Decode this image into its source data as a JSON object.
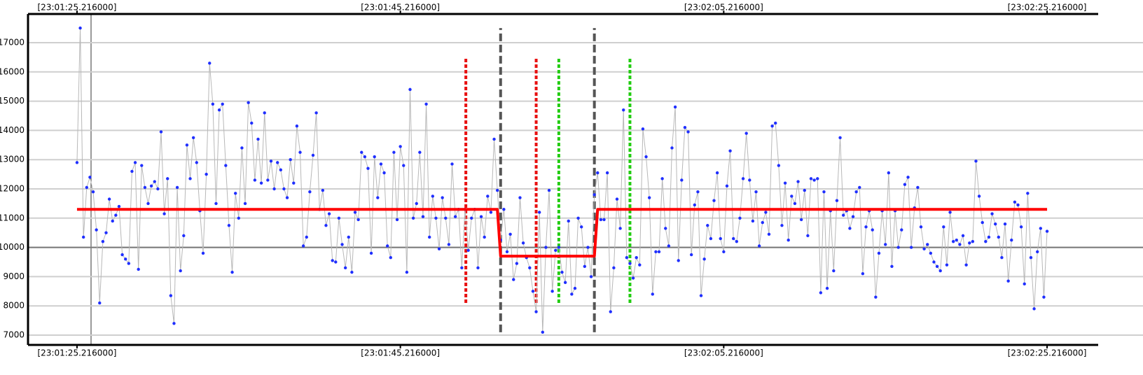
{
  "chart_data": {
    "type": "line",
    "xlim": [
      -3.03,
      63.03
    ],
    "xticks": [
      {
        "value": 0,
        "label": "[23:01:25.216000]"
      },
      {
        "value": 20,
        "label": "[23:01:45.216000]"
      },
      {
        "value": 40,
        "label": "[23:02:05.216000]"
      },
      {
        "value": 60,
        "label": "[23:02:25.216000]"
      }
    ],
    "ylim": [
      6665,
      17981
    ],
    "yticks": [
      7000,
      8000,
      9000,
      10000,
      11000,
      12000,
      13000,
      14000,
      15000,
      16000,
      17000
    ],
    "grid": true,
    "hline": 10000,
    "series": [
      {
        "color": "#1f2fff",
        "line_color": "#b8b8b8",
        "markers": true,
        "x": [
          0,
          0.2,
          0.4,
          0.6,
          0.8,
          1,
          1.2,
          1.4,
          1.6,
          1.8,
          2,
          2.2,
          2.4,
          2.6,
          2.8,
          3,
          3.2,
          3.4,
          3.6,
          3.8,
          4,
          4.2,
          4.4,
          4.6,
          4.8,
          5,
          5.2,
          5.4,
          5.6,
          5.8,
          6,
          6.2,
          6.4,
          6.6,
          6.8,
          7,
          7.2,
          7.4,
          7.6,
          7.8,
          8,
          8.2,
          8.4,
          8.6,
          8.8,
          9,
          9.2,
          9.4,
          9.6,
          9.8,
          10,
          10.2,
          10.4,
          10.6,
          10.8,
          11,
          11.2,
          11.4,
          11.6,
          11.8,
          12,
          12.2,
          12.4,
          12.6,
          12.8,
          13,
          13.2,
          13.4,
          13.6,
          13.8,
          14,
          14.2,
          14.4,
          14.6,
          14.8,
          15,
          15.2,
          15.4,
          15.6,
          15.8,
          16,
          16.2,
          16.4,
          16.6,
          16.8,
          17,
          17.2,
          17.4,
          17.6,
          17.8,
          18,
          18.2,
          18.4,
          18.6,
          18.8,
          19,
          19.2,
          19.4,
          19.6,
          19.8,
          20,
          20.2,
          20.4,
          20.6,
          20.8,
          21,
          21.2,
          21.4,
          21.6,
          21.8,
          22,
          22.2,
          22.4,
          22.6,
          22.8,
          23,
          23.2,
          23.4,
          23.6,
          23.8,
          24,
          24.2,
          24.4,
          24.6,
          24.8,
          25,
          25.2,
          25.4,
          25.6,
          25.8,
          26,
          26.2,
          26.4,
          26.6,
          26.8,
          27,
          27.2,
          27.4,
          27.6,
          27.8,
          28,
          28.2,
          28.4,
          28.6,
          28.8,
          29,
          29.2,
          29.4,
          29.6,
          29.8,
          30,
          30.2,
          30.4,
          30.6,
          30.8,
          31,
          31.2,
          31.4,
          31.6,
          31.8,
          32,
          32.2,
          32.4,
          32.6,
          32.8,
          33,
          33.2,
          33.4,
          33.6,
          33.8,
          34,
          34.2,
          34.4,
          34.6,
          34.8,
          35,
          35.2,
          35.4,
          35.6,
          35.8,
          36,
          36.2,
          36.4,
          36.6,
          36.8,
          37,
          37.2,
          37.4,
          37.6,
          37.8,
          38,
          38.2,
          38.4,
          38.6,
          38.8,
          39,
          39.2,
          39.4,
          39.6,
          39.8,
          40,
          40.2,
          40.4,
          40.6,
          40.8,
          41,
          41.2,
          41.4,
          41.6,
          41.8,
          42,
          42.2,
          42.4,
          42.6,
          42.8,
          43,
          43.2,
          43.4,
          43.6,
          43.8,
          44,
          44.2,
          44.4,
          44.6,
          44.8,
          45,
          45.2,
          45.4,
          45.6,
          45.8,
          46,
          46.2,
          46.4,
          46.6,
          46.8,
          47,
          47.2,
          47.4,
          47.6,
          47.8,
          48,
          48.2,
          48.4,
          48.6,
          48.8,
          49,
          49.2,
          49.4,
          49.6,
          49.8,
          50,
          50.2,
          50.4,
          50.6,
          50.8,
          51,
          51.2,
          51.4,
          51.6,
          51.8,
          52,
          52.2,
          52.4,
          52.6,
          52.8,
          53,
          53.2,
          53.4,
          53.6,
          53.8,
          54,
          54.2,
          54.4,
          54.6,
          54.8,
          55,
          55.2,
          55.4,
          55.6,
          55.8,
          56,
          56.2,
          56.4,
          56.6,
          56.8,
          57,
          57.2,
          57.4,
          57.6,
          57.8,
          58,
          58.2,
          58.4,
          58.6,
          58.8,
          59,
          59.2,
          59.4,
          59.6,
          59.8,
          60
        ],
        "values": [
          12900,
          17500,
          10350,
          12050,
          12400,
          11900,
          10600,
          8100,
          10200,
          10500,
          11650,
          10900,
          11100,
          11400,
          9750,
          9600,
          9450,
          12600,
          12900,
          9250,
          12800,
          12050,
          11500,
          12100,
          12250,
          12000,
          13950,
          11150,
          12350,
          8350,
          7400,
          12050,
          9200,
          10400,
          13500,
          12350,
          13750,
          12900,
          11250,
          9800,
          12500,
          16300,
          14900,
          11500,
          14700,
          14900,
          12800,
          10750,
          9150,
          11850,
          11000,
          13400,
          11500,
          14950,
          14250,
          12300,
          13700,
          12200,
          14600,
          12300,
          12950,
          12000,
          12900,
          12650,
          12000,
          11700,
          13000,
          12200,
          14150,
          13250,
          10050,
          10350,
          11900,
          13150,
          14600,
          11300,
          11950,
          10750,
          11150,
          9550,
          9500,
          11000,
          10100,
          9300,
          10350,
          9150,
          11200,
          10950,
          13250,
          13100,
          12700,
          9800,
          13100,
          11700,
          12850,
          12550,
          10050,
          9650,
          13250,
          10950,
          13450,
          12800,
          9150,
          15400,
          11000,
          11500,
          13250,
          11050,
          14900,
          10350,
          11750,
          11000,
          9950,
          11700,
          11000,
          10100,
          12850,
          11050,
          11300,
          9300,
          11300,
          9900,
          11000,
          11300,
          9300,
          11050,
          10350,
          11750,
          11200,
          13700,
          11950,
          10250,
          11300,
          9850,
          10450,
          8900,
          9450,
          11700,
          10150,
          9650,
          9300,
          8500,
          7800,
          11200,
          7100,
          10000,
          11950,
          8500,
          9900,
          10000,
          9150,
          8800,
          10900,
          8400,
          8600,
          11000,
          10700,
          9350,
          10000,
          9000,
          11800,
          12550,
          10950,
          10950,
          12550,
          7800,
          9300,
          11650,
          10650,
          14700,
          9650,
          9450,
          8950,
          9650,
          9400,
          14050,
          13100,
          11700,
          8400,
          9850,
          9850,
          12350,
          10650,
          10050,
          13400,
          14800,
          9550,
          12300,
          14100,
          13950,
          9750,
          11450,
          11900,
          8350,
          9600,
          10750,
          10300,
          11600,
          12550,
          10300,
          9850,
          12100,
          13300,
          10300,
          10200,
          11000,
          12350,
          13900,
          12300,
          10900,
          11900,
          10050,
          10850,
          11200,
          10450,
          14150,
          14250,
          12800,
          10750,
          12200,
          10250,
          11750,
          11500,
          12250,
          10950,
          11950,
          10400,
          12350,
          12300,
          12350,
          8450,
          11900,
          8600,
          11250,
          9200,
          11600,
          13750,
          11100,
          11250,
          10650,
          11050,
          11900,
          12050,
          9100,
          10700,
          11250,
          10600,
          8300,
          9800,
          11250,
          10100,
          12550,
          9350,
          11250,
          10000,
          10600,
          12150,
          12400,
          10000,
          11350,
          12050,
          10700,
          9950,
          10100,
          9800,
          9500,
          9350,
          9200,
          10700,
          9400,
          11200,
          10200,
          10250,
          10100,
          10400,
          9400,
          10150,
          10200,
          12950,
          11750,
          10850,
          10200,
          10350,
          11150,
          10800,
          10350,
          9650,
          10800,
          8850,
          10250,
          11550,
          11450,
          10700,
          8750,
          11850,
          9650,
          7900,
          9850,
          10650,
          8300,
          10550
        ]
      },
      {
        "color": "#ff0000",
        "markers": false,
        "x": [
          0,
          26.0,
          26.2,
          32.0,
          32.2,
          60
        ],
        "values": [
          11300,
          11300,
          9700,
          9700,
          11300,
          11300
        ]
      }
    ],
    "vlines": [
      {
        "x": 24.05,
        "ymin": 8100,
        "ymax": 16500,
        "color": "#e81010",
        "dash": "dotted"
      },
      {
        "x": 26.2,
        "ymin": 7100,
        "ymax": 17500,
        "color": "#555555",
        "dash": "dashed"
      },
      {
        "x": 28.4,
        "ymin": 8100,
        "ymax": 16500,
        "color": "#e81010",
        "dash": "dotted"
      },
      {
        "x": 29.8,
        "ymin": 8100,
        "ymax": 16500,
        "color": "#22cc11",
        "dash": "dotted"
      },
      {
        "x": 32.0,
        "ymin": 7100,
        "ymax": 17500,
        "color": "#555555",
        "dash": "dashed"
      },
      {
        "x": 34.2,
        "ymin": 8100,
        "ymax": 16500,
        "color": "#22cc11",
        "dash": "dotted"
      }
    ]
  }
}
